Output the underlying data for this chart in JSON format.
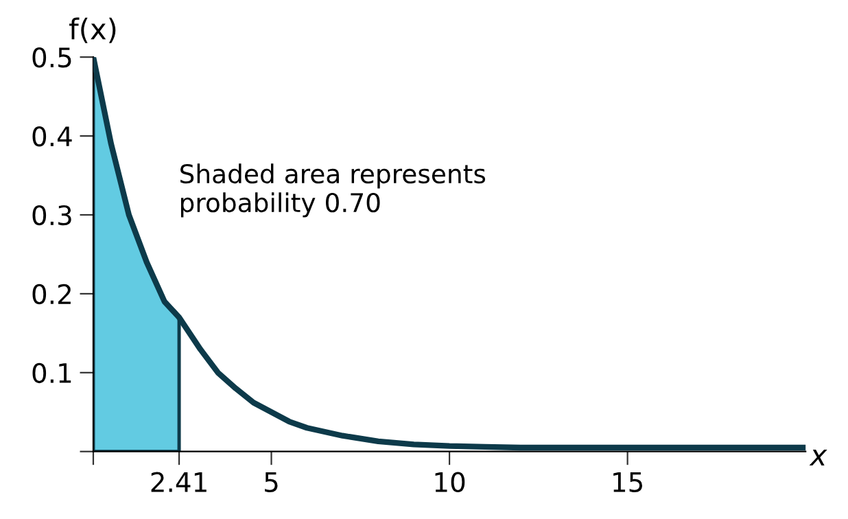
{
  "chart_data": {
    "type": "line",
    "xlabel": "x",
    "ylabel": "f(x)",
    "xlim": [
      0,
      20
    ],
    "ylim": [
      0,
      0.5
    ],
    "xticks": [
      {
        "value": 0,
        "label": null
      },
      2.41,
      5,
      10,
      15
    ],
    "yticks": [
      {
        "value": 0,
        "label": null
      },
      0.1,
      0.2,
      0.3,
      0.4,
      0.5
    ],
    "grid": false,
    "legend": false,
    "marker": "none",
    "line_style": "solid",
    "annotations": [
      {
        "text": "Shaded area represents\nprobability 0.70"
      }
    ],
    "series": [
      {
        "type": "area",
        "color": "#62cbe2",
        "x": [
          0,
          0.5,
          1,
          1.5,
          2,
          2.41
        ],
        "values": [
          0.5,
          0.39,
          0.3,
          0.24,
          0.19,
          0.17
        ]
      },
      {
        "color": "#0d3a4a",
        "x": [
          0,
          0.5,
          1,
          1.5,
          2,
          2.41,
          3,
          3.5,
          4,
          4.5,
          5,
          5.5,
          6,
          7,
          8,
          9,
          10,
          11,
          12,
          14,
          16,
          18,
          20
        ],
        "values": [
          0.5,
          0.39,
          0.3,
          0.24,
          0.19,
          0.17,
          0.13,
          0.1,
          0.08,
          0.062,
          0.05,
          0.038,
          0.03,
          0.02,
          0.013,
          0.009,
          0.007,
          0.006,
          0.005,
          0.005,
          0.005,
          0.005,
          0.005
        ]
      }
    ]
  }
}
